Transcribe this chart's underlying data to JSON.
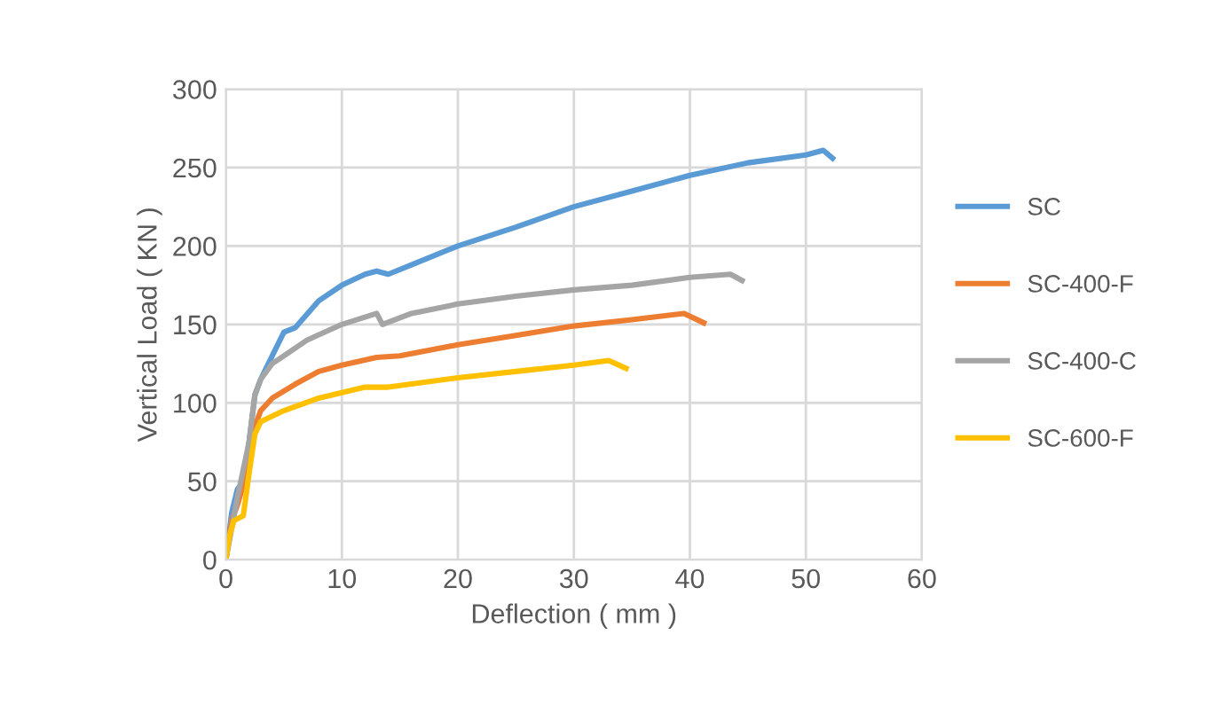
{
  "chart_data": {
    "type": "line",
    "xlabel": "Deflection ( mm )",
    "ylabel": "Vertical Load ( KN )",
    "xlim": [
      0,
      60
    ],
    "ylim": [
      0,
      300
    ],
    "xticks": [
      0,
      10,
      20,
      30,
      40,
      50,
      60
    ],
    "yticks": [
      0,
      50,
      100,
      150,
      200,
      250,
      300
    ],
    "grid": true,
    "legend": "right",
    "marker": "none",
    "line_style": "solid",
    "series": [
      {
        "name": "SC",
        "color": "#5b9bd5",
        "x": [
          0,
          0.5,
          1,
          1.5,
          2,
          2.5,
          3,
          4,
          5,
          6,
          8,
          10,
          12,
          13,
          14,
          16,
          20,
          25,
          30,
          35,
          40,
          45,
          50,
          51.5,
          52.3
        ],
        "values": [
          0,
          30,
          45,
          50,
          75,
          105,
          115,
          130,
          145,
          148,
          165,
          175,
          182,
          184,
          182,
          188,
          200,
          212,
          225,
          235,
          245,
          253,
          258,
          261,
          256
        ]
      },
      {
        "name": "SC-400-F",
        "color": "#ed7d31",
        "x": [
          0,
          0.5,
          1,
          2,
          2.5,
          3,
          4,
          6,
          8,
          10,
          13,
          15,
          20,
          25,
          30,
          35,
          39.5,
          41.2
        ],
        "values": [
          0,
          25,
          35,
          60,
          85,
          95,
          103,
          112,
          120,
          124,
          129,
          130,
          137,
          143,
          149,
          153,
          157,
          151
        ]
      },
      {
        "name": "SC-400-C",
        "color": "#a5a5a5",
        "x": [
          0,
          1,
          2,
          2.5,
          3,
          4,
          5,
          7,
          10,
          13,
          13.5,
          16,
          20,
          25,
          30,
          35,
          40,
          43.5,
          44.5
        ],
        "values": [
          0,
          40,
          75,
          105,
          115,
          125,
          130,
          140,
          150,
          157,
          150,
          157,
          163,
          168,
          172,
          175,
          180,
          182,
          178
        ]
      },
      {
        "name": "SC-600-F",
        "color": "#ffc000",
        "x": [
          0,
          0.3,
          0.7,
          1.5,
          2,
          2.5,
          3,
          5,
          8,
          12,
          14,
          20,
          25,
          30,
          33,
          34.5
        ],
        "values": [
          0,
          15,
          25,
          28,
          55,
          80,
          88,
          95,
          103,
          110,
          110,
          116,
          120,
          124,
          127,
          122
        ]
      }
    ]
  }
}
